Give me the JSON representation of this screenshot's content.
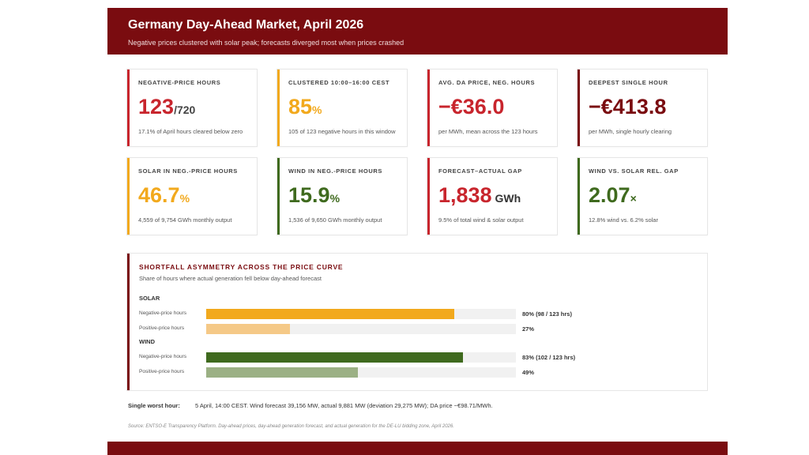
{
  "header": {
    "title": "Germany Day-Ahead Market, April 2026",
    "subtitle": "Negative prices clustered with solar peak; forecasts diverged most when prices crashed"
  },
  "cards": [
    {
      "label": "NEGATIVE-PRICE HOURS",
      "value": "123",
      "unit": "/720",
      "note": "17.1% of April hours cleared below zero",
      "color": "#c8252d"
    },
    {
      "label": "CLUSTERED 10:00–16:00 CEST",
      "value": "85",
      "unit": "%",
      "note": "105 of 123 negative hours in this window",
      "color": "#f2a91d"
    },
    {
      "label": "AVG. DA PRICE, NEG. HOURS",
      "value": "−€36.0",
      "unit": "",
      "note": "per MWh, mean across the 123 hours",
      "color": "#c8252d"
    },
    {
      "label": "DEEPEST SINGLE HOUR",
      "value": "−€413.8",
      "unit": "",
      "note": "per MWh, single hourly clearing",
      "color": "#7a0c10"
    },
    {
      "label": "SOLAR IN NEG.-PRICE HOURS",
      "value": "46.7",
      "unit": "%",
      "note": "4,559 of 9,754 GWh monthly output",
      "color": "#f2a91d"
    },
    {
      "label": "WIND IN NEG.-PRICE HOURS",
      "value": "15.9",
      "unit": "%",
      "note": "1,536 of 9,650 GWh monthly output",
      "color": "#3f6a1e"
    },
    {
      "label": "FORECAST–ACTUAL GAP",
      "value": "1,838",
      "unit": " GWh",
      "note": "9.5% of total wind & solar output",
      "color": "#c8252d"
    },
    {
      "label": "WIND VS. SOLAR REL. GAP",
      "value": "2.07",
      "unit": "×",
      "note": "12.8% wind vs. 6.2% solar",
      "color": "#3f6a1e"
    }
  ],
  "chart_data": {
    "type": "bar",
    "title": "SHORTFALL ASYMMETRY ACROSS THE PRICE CURVE",
    "subtitle": "Share of hours where actual generation fell below day-ahead forecast",
    "xlim": [
      0,
      100
    ],
    "groups": [
      {
        "name": "SOLAR",
        "rows": [
          {
            "label": "Negative-price hours",
            "value": 80,
            "display": "80% (98 / 123 hrs)",
            "color": "#f2a91d"
          },
          {
            "label": "Positive-price hours",
            "value": 27,
            "display": "27%",
            "color": "#f5c987"
          }
        ]
      },
      {
        "name": "WIND",
        "rows": [
          {
            "label": "Negative-price hours",
            "value": 83,
            "display": "83% (102 / 123 hrs)",
            "color": "#3f6a1e"
          },
          {
            "label": "Positive-price hours",
            "value": 49,
            "display": "49%",
            "color": "#9bb084"
          }
        ]
      }
    ]
  },
  "worst_hour": {
    "label": "Single worst hour:",
    "text": "5 April, 14:00 CEST. Wind forecast 39,156 MW, actual 9,881 MW (deviation 29,275 MW); DA price −€98.71/MWh."
  },
  "source": "Source: ENTSO-E Transparency Platform. Day-ahead prices, day-ahead generation forecast, and actual generation for the DE-LU bidding zone, April 2026."
}
